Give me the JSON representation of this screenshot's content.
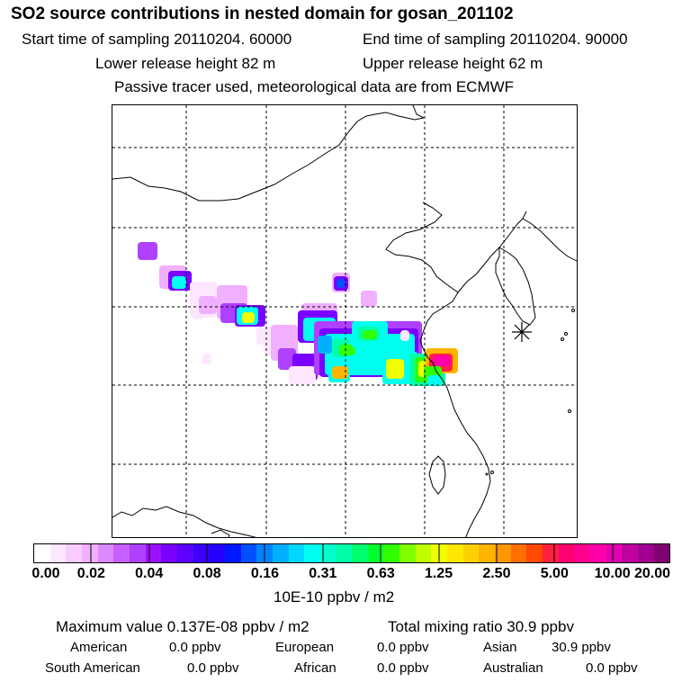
{
  "header": {
    "title": "SO2 source contributions in nested domain for gosan_201102",
    "start_time": "Start time of sampling 20110204. 60000",
    "end_time": "End time of sampling 20110204. 90000",
    "lower_release": "Lower release height   82 m",
    "upper_release": "Upper release height   62 m",
    "model_note": "Passive tracer used, meteorological data are from ECMWF"
  },
  "colorbar": {
    "tick_labels": [
      "0.00",
      "0.02",
      "0.04",
      "0.08",
      "0.16",
      "0.31",
      "0.63",
      "1.25",
      "2.50",
      "5.00",
      "10.00",
      "20.00"
    ],
    "unit_label": "10E-10 ppbv / m2",
    "colors": [
      "#ffffff",
      "#fde7ff",
      "#f8ccff",
      "#f0b0ff",
      "#dc88ff",
      "#c860ff",
      "#b040ff",
      "#9a10ff",
      "#7a00ff",
      "#5c00ff",
      "#3c00ff",
      "#2400ff",
      "#0018ff",
      "#0050ff",
      "#0084ff",
      "#00b0ff",
      "#00d8ff",
      "#00fff0",
      "#00ffd0",
      "#00ffa8",
      "#00ff70",
      "#00ff30",
      "#30ff00",
      "#80ff00",
      "#c0ff00",
      "#f0ff00",
      "#ffe800",
      "#ffd000",
      "#ffb400",
      "#ff9800",
      "#ff7000",
      "#ff4800",
      "#ff2040",
      "#ff0070",
      "#ff0090",
      "#ff00a8",
      "#e000b0",
      "#c000a0",
      "#a00090",
      "#800070"
    ]
  },
  "summary": {
    "max_value": "Maximum value  0.137E-08 ppbv / m2",
    "total_mixing": "Total mixing ratio       30.9 ppbv",
    "american": "American",
    "american_val": "0.0 ppbv",
    "european": "European",
    "european_val": "0.0 ppbv",
    "asian": "Asian",
    "asian_val": "30.9 ppbv",
    "south_american": "South American",
    "south_american_val": "0.0 ppbv",
    "african": "African",
    "african_val": "0.0 ppbv",
    "australian": "Australian",
    "australian_val": "0.0 ppbv"
  },
  "map": {
    "receptor_marker": "asterisk-icon",
    "plume_colors": {
      "faint": "#fde7ff",
      "light": "#f0b0ff",
      "violet": "#b040ff",
      "purple": "#7a00ff",
      "blue": "#0050ff",
      "sky": "#00b0ff",
      "cyan": "#00fff0",
      "teal": "#00ffa8",
      "green": "#30ff00",
      "yellow": "#f0ff00",
      "orange": "#ffb400",
      "red": "#ff2040",
      "magenta": "#ff00a8"
    }
  }
}
